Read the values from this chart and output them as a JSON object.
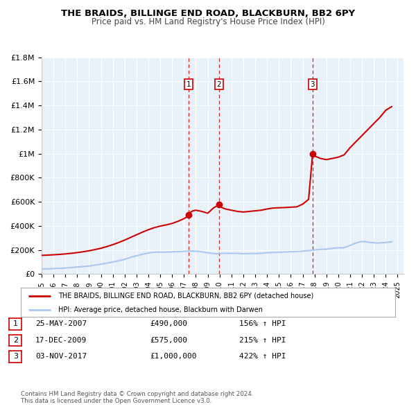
{
  "title": "THE BRAIDS, BILLINGE END ROAD, BLACKBURN, BB2 6PY",
  "subtitle": "Price paid vs. HM Land Registry's House Price Index (HPI)",
  "ylim": [
    0,
    1800000
  ],
  "yticks": [
    0,
    200000,
    400000,
    600000,
    800000,
    1000000,
    1200000,
    1400000,
    1600000,
    1800000
  ],
  "ytick_labels": [
    "£0",
    "£200K",
    "£400K",
    "£600K",
    "£800K",
    "£1M",
    "£1.2M",
    "£1.4M",
    "£1.6M",
    "£1.8M"
  ],
  "xlim_start": 1995.0,
  "xlim_end": 2025.5,
  "hpi_color": "#a8c8f0",
  "price_color": "#cc0000",
  "sale_marker_color": "#cc0000",
  "vline_color": "#cc0000",
  "plot_bg_color": "#e8f0f8",
  "legend_label_red": "THE BRAIDS, BILLINGE END ROAD, BLACKBURN, BB2 6PY (detached house)",
  "legend_label_blue": "HPI: Average price, detached house, Blackburn with Darwen",
  "sale_dates": [
    2007.39,
    2009.96,
    2017.84
  ],
  "sale_prices": [
    490000,
    575000,
    1000000
  ],
  "sale_labels": [
    "1",
    "2",
    "3"
  ],
  "table_rows": [
    [
      "1",
      "25-MAY-2007",
      "£490,000",
      "156% ↑ HPI"
    ],
    [
      "2",
      "17-DEC-2009",
      "£575,000",
      "215% ↑ HPI"
    ],
    [
      "3",
      "03-NOV-2017",
      "£1,000,000",
      "422% ↑ HPI"
    ]
  ],
  "footer": "Contains HM Land Registry data © Crown copyright and database right 2024.\nThis data is licensed under the Open Government Licence v3.0.",
  "hpi_data_x": [
    1995.0,
    1995.25,
    1995.5,
    1995.75,
    1996.0,
    1996.25,
    1996.5,
    1996.75,
    1997.0,
    1997.25,
    1997.5,
    1997.75,
    1998.0,
    1998.25,
    1998.5,
    1998.75,
    1999.0,
    1999.25,
    1999.5,
    1999.75,
    2000.0,
    2000.25,
    2000.5,
    2000.75,
    2001.0,
    2001.25,
    2001.5,
    2001.75,
    2002.0,
    2002.25,
    2002.5,
    2002.75,
    2003.0,
    2003.25,
    2003.5,
    2003.75,
    2004.0,
    2004.25,
    2004.5,
    2004.75,
    2005.0,
    2005.25,
    2005.5,
    2005.75,
    2006.0,
    2006.25,
    2006.5,
    2006.75,
    2007.0,
    2007.25,
    2007.5,
    2007.75,
    2008.0,
    2008.25,
    2008.5,
    2008.75,
    2009.0,
    2009.25,
    2009.5,
    2009.75,
    2010.0,
    2010.25,
    2010.5,
    2010.75,
    2011.0,
    2011.25,
    2011.5,
    2011.75,
    2012.0,
    2012.25,
    2012.5,
    2012.75,
    2013.0,
    2013.25,
    2013.5,
    2013.75,
    2014.0,
    2014.25,
    2014.5,
    2014.75,
    2015.0,
    2015.25,
    2015.5,
    2015.75,
    2016.0,
    2016.25,
    2016.5,
    2016.75,
    2017.0,
    2017.25,
    2017.5,
    2017.75,
    2018.0,
    2018.25,
    2018.5,
    2018.75,
    2019.0,
    2019.25,
    2019.5,
    2019.75,
    2020.0,
    2020.25,
    2020.5,
    2020.75,
    2021.0,
    2021.25,
    2021.5,
    2021.75,
    2022.0,
    2022.25,
    2022.5,
    2022.75,
    2023.0,
    2023.25,
    2023.5,
    2023.75,
    2024.0,
    2024.25,
    2024.5
  ],
  "hpi_data_y": [
    42000,
    42500,
    43000,
    44000,
    45000,
    46000,
    47000,
    48000,
    50000,
    52000,
    54000,
    56000,
    58000,
    60000,
    62000,
    64000,
    66000,
    70000,
    74000,
    78000,
    82000,
    86000,
    90000,
    95000,
    100000,
    105000,
    110000,
    116000,
    122000,
    130000,
    138000,
    146000,
    152000,
    158000,
    164000,
    170000,
    175000,
    178000,
    181000,
    182000,
    182000,
    182000,
    182000,
    183000,
    184000,
    185000,
    186000,
    187000,
    188000,
    190000,
    191000,
    190000,
    189000,
    188000,
    185000,
    180000,
    176000,
    173000,
    170000,
    168000,
    170000,
    171000,
    172000,
    172000,
    172000,
    172000,
    171000,
    170000,
    169000,
    169000,
    170000,
    170000,
    170000,
    171000,
    173000,
    175000,
    177000,
    178000,
    179000,
    180000,
    181000,
    182000,
    183000,
    184000,
    185000,
    186000,
    187000,
    188000,
    190000,
    192000,
    195000,
    197000,
    200000,
    202000,
    204000,
    205000,
    207000,
    210000,
    213000,
    216000,
    218000,
    218000,
    220000,
    228000,
    238000,
    248000,
    258000,
    265000,
    270000,
    268000,
    265000,
    262000,
    260000,
    258000,
    258000,
    260000,
    262000,
    265000,
    268000
  ],
  "price_data_x": [
    1995.0,
    1995.5,
    1996.0,
    1996.5,
    1997.0,
    1997.5,
    1998.0,
    1998.5,
    1999.0,
    1999.5,
    2000.0,
    2000.5,
    2001.0,
    2001.5,
    2002.0,
    2002.5,
    2003.0,
    2003.5,
    2004.0,
    2004.5,
    2005.0,
    2005.5,
    2006.0,
    2006.5,
    2007.0,
    2007.25,
    2007.39,
    2007.5,
    2007.75,
    2008.0,
    2008.5,
    2009.0,
    2009.5,
    2009.96,
    2010.0,
    2010.5,
    2011.0,
    2011.5,
    2012.0,
    2012.5,
    2013.0,
    2013.5,
    2014.0,
    2014.5,
    2015.0,
    2015.5,
    2016.0,
    2016.5,
    2017.0,
    2017.5,
    2017.84,
    2018.0,
    2018.5,
    2019.0,
    2019.5,
    2020.0,
    2020.5,
    2021.0,
    2021.5,
    2022.0,
    2022.5,
    2023.0,
    2023.5,
    2024.0,
    2024.5
  ],
  "price_data_y": [
    155000,
    157000,
    160000,
    163000,
    167000,
    172000,
    178000,
    185000,
    193000,
    203000,
    214000,
    228000,
    244000,
    262000,
    282000,
    304000,
    326000,
    348000,
    368000,
    385000,
    398000,
    408000,
    420000,
    438000,
    460000,
    475000,
    490000,
    510000,
    525000,
    530000,
    520000,
    505000,
    550000,
    575000,
    560000,
    540000,
    530000,
    520000,
    515000,
    520000,
    525000,
    530000,
    540000,
    548000,
    550000,
    552000,
    555000,
    558000,
    580000,
    620000,
    1000000,
    980000,
    960000,
    950000,
    960000,
    970000,
    990000,
    1050000,
    1100000,
    1150000,
    1200000,
    1250000,
    1300000,
    1360000,
    1390000
  ]
}
